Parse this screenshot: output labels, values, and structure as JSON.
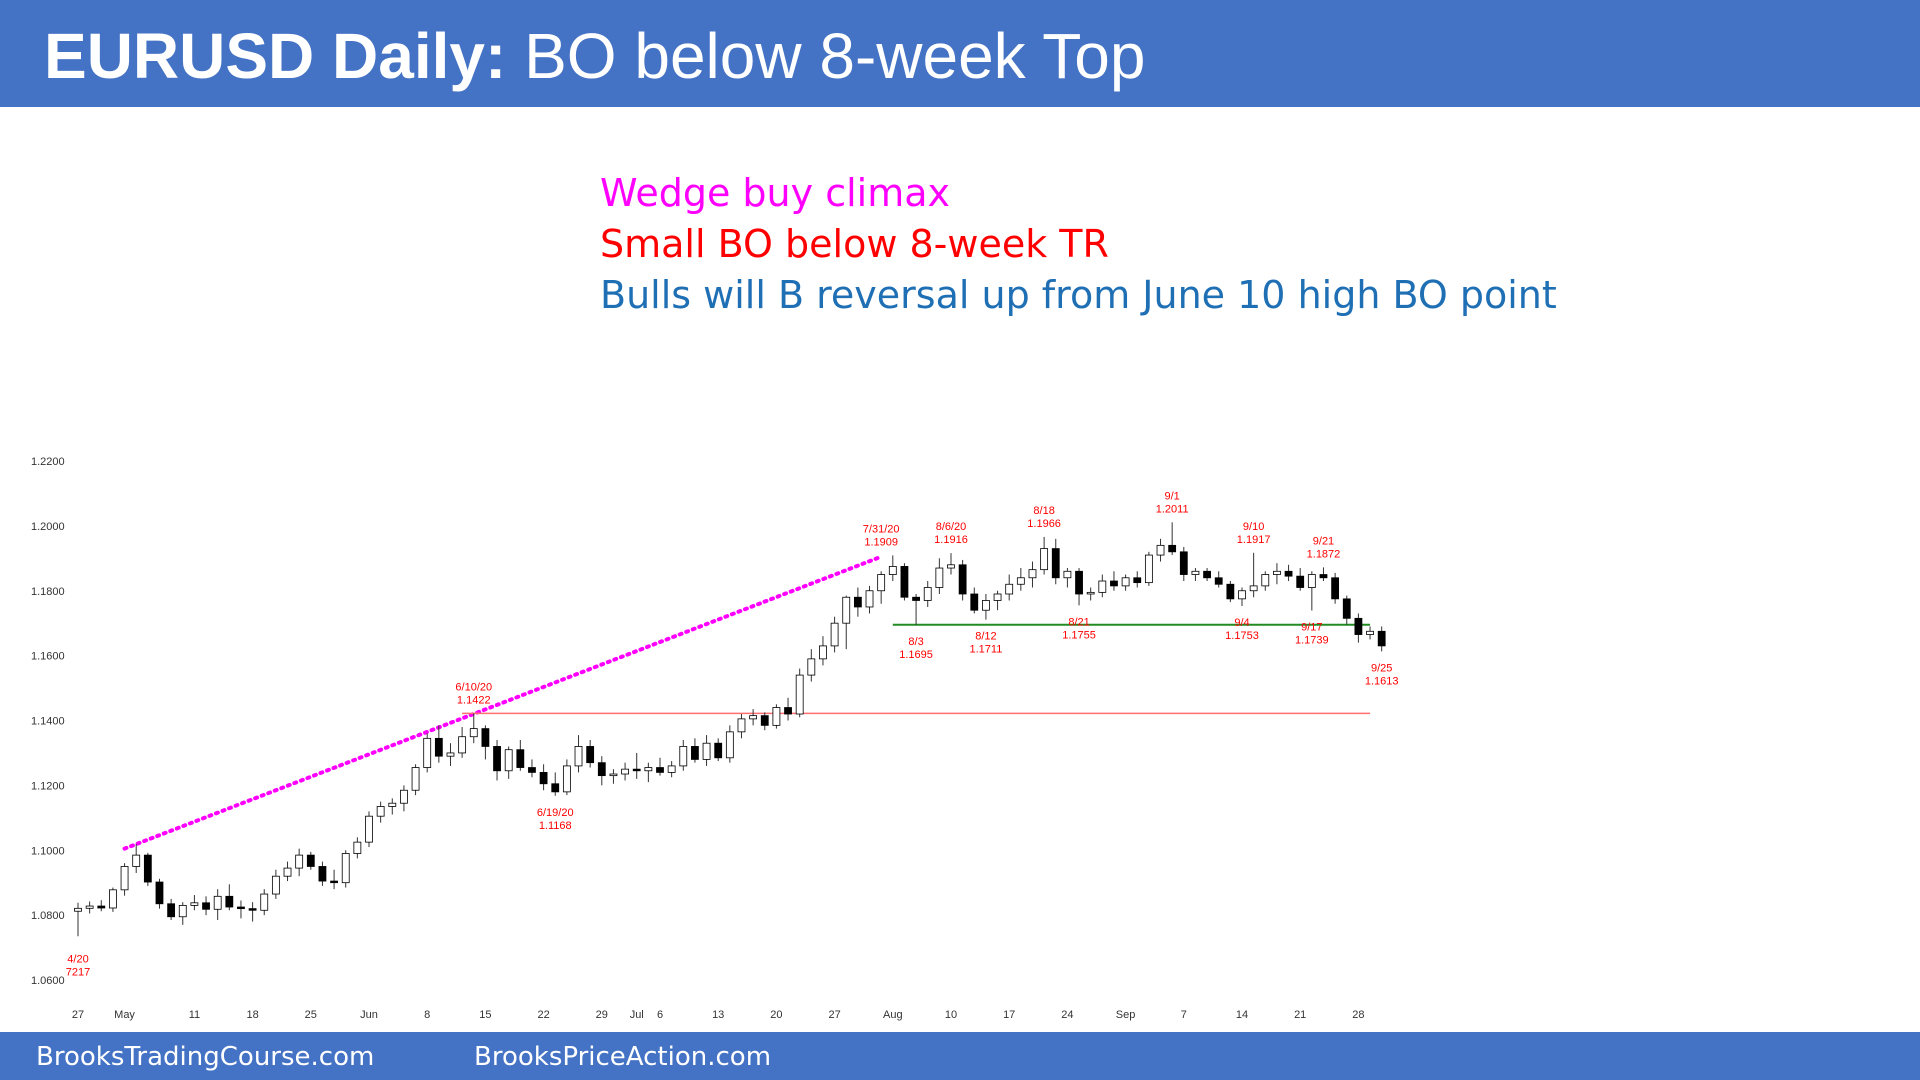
{
  "header": {
    "title_bold": "EURUSD Daily:",
    "title_rest": "BO below 8-week Top"
  },
  "notes": [
    {
      "text": "Wedge buy climax",
      "color": "#ff00ff"
    },
    {
      "text": "Small BO below 8-week TR",
      "color": "#ff0000"
    },
    {
      "text": "Bulls will B reversal up from June 10 high BO point",
      "color": "#1f6fb5"
    }
  ],
  "footer": {
    "left": "BrooksTradingCourse.com",
    "right": "BrooksPriceAction.com"
  },
  "chart_data": {
    "type": "candlestick",
    "ylim": [
      1.06,
      1.22
    ],
    "y_ticks": [
      "1.0600",
      "1.0800",
      "1.1000",
      "1.1200",
      "1.1400",
      "1.1600",
      "1.1800",
      "1.2000",
      "1.2200"
    ],
    "x_ticks": [
      {
        "label": "27",
        "i": 0
      },
      {
        "label": "May",
        "i": 4
      },
      {
        "label": "11",
        "i": 10
      },
      {
        "label": "18",
        "i": 15
      },
      {
        "label": "25",
        "i": 20
      },
      {
        "label": "Jun",
        "i": 25
      },
      {
        "label": "8",
        "i": 30
      },
      {
        "label": "15",
        "i": 35
      },
      {
        "label": "22",
        "i": 40
      },
      {
        "label": "29",
        "i": 45
      },
      {
        "label": "Jul",
        "i": 48
      },
      {
        "label": "6",
        "i": 50
      },
      {
        "label": "13",
        "i": 55
      },
      {
        "label": "20",
        "i": 60
      },
      {
        "label": "27",
        "i": 65
      },
      {
        "label": "Aug",
        "i": 70
      },
      {
        "label": "10",
        "i": 75
      },
      {
        "label": "17",
        "i": 80
      },
      {
        "label": "24",
        "i": 85
      },
      {
        "label": "Sep",
        "i": 90
      },
      {
        "label": "7",
        "i": 95
      },
      {
        "label": "14",
        "i": 100
      },
      {
        "label": "21",
        "i": 105
      },
      {
        "label": "28",
        "i": 110
      }
    ],
    "candles": [
      [
        1.0812,
        1.0838,
        1.0735,
        1.0821
      ],
      [
        1.0821,
        1.0842,
        1.0805,
        1.0828
      ],
      [
        1.0828,
        1.0846,
        1.0812,
        1.0822
      ],
      [
        1.0822,
        1.0885,
        1.081,
        1.0878
      ],
      [
        1.0878,
        1.096,
        1.086,
        1.095
      ],
      [
        1.095,
        1.1019,
        1.093,
        1.0985
      ],
      [
        1.0985,
        1.0992,
        1.089,
        1.0902
      ],
      [
        1.0902,
        1.0912,
        1.082,
        1.0835
      ],
      [
        1.0835,
        1.085,
        1.0785,
        1.0795
      ],
      [
        1.0795,
        1.084,
        1.077,
        1.083
      ],
      [
        1.083,
        1.0862,
        1.0815,
        1.0838
      ],
      [
        1.0838,
        1.0858,
        1.08,
        1.0818
      ],
      [
        1.0818,
        1.088,
        1.0785,
        1.0858
      ],
      [
        1.0858,
        1.0895,
        1.0815,
        1.0825
      ],
      [
        1.0825,
        1.0845,
        1.079,
        1.082
      ],
      [
        1.082,
        1.084,
        1.078,
        1.0815
      ],
      [
        1.0815,
        1.088,
        1.08,
        1.0865
      ],
      [
        1.0865,
        1.094,
        1.085,
        1.092
      ],
      [
        1.092,
        1.0965,
        1.0905,
        1.0945
      ],
      [
        1.0945,
        1.1005,
        1.092,
        1.0985
      ],
      [
        1.0985,
        1.0995,
        1.094,
        1.095
      ],
      [
        1.095,
        1.0965,
        1.089,
        1.0905
      ],
      [
        1.0905,
        1.094,
        1.088,
        1.09
      ],
      [
        1.09,
        1.1,
        1.0885,
        1.099
      ],
      [
        1.099,
        1.104,
        1.0975,
        1.1025
      ],
      [
        1.1025,
        1.112,
        1.101,
        1.1105
      ],
      [
        1.1105,
        1.115,
        1.1085,
        1.1135
      ],
      [
        1.1135,
        1.116,
        1.111,
        1.1145
      ],
      [
        1.1145,
        1.12,
        1.112,
        1.1185
      ],
      [
        1.1185,
        1.1265,
        1.117,
        1.1255
      ],
      [
        1.1255,
        1.136,
        1.124,
        1.1345
      ],
      [
        1.1345,
        1.1385,
        1.127,
        1.129
      ],
      [
        1.129,
        1.133,
        1.126,
        1.13
      ],
      [
        1.13,
        1.138,
        1.1285,
        1.135
      ],
      [
        1.135,
        1.1422,
        1.133,
        1.1375
      ],
      [
        1.1375,
        1.1385,
        1.128,
        1.132
      ],
      [
        1.132,
        1.134,
        1.1215,
        1.1245
      ],
      [
        1.1245,
        1.132,
        1.122,
        1.131
      ],
      [
        1.131,
        1.134,
        1.1245,
        1.1255
      ],
      [
        1.1255,
        1.128,
        1.1225,
        1.124
      ],
      [
        1.124,
        1.1265,
        1.1185,
        1.1205
      ],
      [
        1.1205,
        1.124,
        1.1168,
        1.118
      ],
      [
        1.118,
        1.128,
        1.117,
        1.126
      ],
      [
        1.126,
        1.1355,
        1.124,
        1.132
      ],
      [
        1.132,
        1.134,
        1.1255,
        1.127
      ],
      [
        1.127,
        1.129,
        1.12,
        1.123
      ],
      [
        1.123,
        1.125,
        1.1205,
        1.1235
      ],
      [
        1.1235,
        1.127,
        1.1215,
        1.125
      ],
      [
        1.125,
        1.13,
        1.122,
        1.1245
      ],
      [
        1.1245,
        1.127,
        1.121,
        1.1255
      ],
      [
        1.1255,
        1.1285,
        1.123,
        1.124
      ],
      [
        1.124,
        1.1275,
        1.1225,
        1.126
      ],
      [
        1.126,
        1.134,
        1.1245,
        1.132
      ],
      [
        1.132,
        1.1345,
        1.127,
        1.128
      ],
      [
        1.128,
        1.1355,
        1.126,
        1.133
      ],
      [
        1.133,
        1.1345,
        1.1275,
        1.1285
      ],
      [
        1.1285,
        1.1385,
        1.127,
        1.1365
      ],
      [
        1.1365,
        1.142,
        1.1345,
        1.1405
      ],
      [
        1.1405,
        1.1435,
        1.1385,
        1.1415
      ],
      [
        1.1415,
        1.1425,
        1.137,
        1.1385
      ],
      [
        1.1385,
        1.145,
        1.1375,
        1.144
      ],
      [
        1.144,
        1.147,
        1.14,
        1.142
      ],
      [
        1.142,
        1.156,
        1.141,
        1.154
      ],
      [
        1.154,
        1.162,
        1.152,
        1.159
      ],
      [
        1.159,
        1.166,
        1.157,
        1.163
      ],
      [
        1.163,
        1.172,
        1.161,
        1.17
      ],
      [
        1.17,
        1.1785,
        1.162,
        1.178
      ],
      [
        1.178,
        1.181,
        1.172,
        1.175
      ],
      [
        1.175,
        1.1815,
        1.173,
        1.18
      ],
      [
        1.18,
        1.186,
        1.176,
        1.185
      ],
      [
        1.185,
        1.1909,
        1.183,
        1.1875
      ],
      [
        1.1875,
        1.1885,
        1.177,
        1.178
      ],
      [
        1.178,
        1.179,
        1.1695,
        1.177
      ],
      [
        1.177,
        1.183,
        1.175,
        1.181
      ],
      [
        1.181,
        1.19,
        1.179,
        1.187
      ],
      [
        1.187,
        1.1916,
        1.185,
        1.188
      ],
      [
        1.188,
        1.1895,
        1.177,
        1.179
      ],
      [
        1.179,
        1.181,
        1.173,
        1.174
      ],
      [
        1.174,
        1.179,
        1.1711,
        1.177
      ],
      [
        1.177,
        1.18,
        1.174,
        1.179
      ],
      [
        1.179,
        1.185,
        1.177,
        1.182
      ],
      [
        1.182,
        1.187,
        1.18,
        1.184
      ],
      [
        1.184,
        1.189,
        1.181,
        1.1865
      ],
      [
        1.1865,
        1.1966,
        1.185,
        1.193
      ],
      [
        1.193,
        1.196,
        1.182,
        1.184
      ],
      [
        1.184,
        1.187,
        1.181,
        1.186
      ],
      [
        1.186,
        1.187,
        1.1755,
        1.179
      ],
      [
        1.179,
        1.181,
        1.177,
        1.1795
      ],
      [
        1.1795,
        1.185,
        1.178,
        1.183
      ],
      [
        1.183,
        1.186,
        1.18,
        1.1815
      ],
      [
        1.1815,
        1.185,
        1.18,
        1.184
      ],
      [
        1.184,
        1.186,
        1.181,
        1.1825
      ],
      [
        1.1825,
        1.192,
        1.1815,
        1.191
      ],
      [
        1.191,
        1.196,
        1.189,
        1.194
      ],
      [
        1.194,
        1.2011,
        1.191,
        1.192
      ],
      [
        1.192,
        1.1935,
        1.183,
        1.185
      ],
      [
        1.185,
        1.187,
        1.183,
        1.186
      ],
      [
        1.186,
        1.187,
        1.183,
        1.184
      ],
      [
        1.184,
        1.186,
        1.181,
        1.182
      ],
      [
        1.182,
        1.183,
        1.1765,
        1.1775
      ],
      [
        1.1775,
        1.181,
        1.1753,
        1.18
      ],
      [
        1.18,
        1.1917,
        1.178,
        1.1815
      ],
      [
        1.1815,
        1.186,
        1.18,
        1.185
      ],
      [
        1.185,
        1.1885,
        1.182,
        1.186
      ],
      [
        1.186,
        1.188,
        1.183,
        1.1845
      ],
      [
        1.1845,
        1.187,
        1.18,
        1.181
      ],
      [
        1.181,
        1.186,
        1.1739,
        1.185
      ],
      [
        1.185,
        1.1872,
        1.183,
        1.184
      ],
      [
        1.184,
        1.1855,
        1.176,
        1.1775
      ],
      [
        1.1775,
        1.1785,
        1.1695,
        1.1715
      ],
      [
        1.1715,
        1.173,
        1.164,
        1.1665
      ],
      [
        1.1665,
        1.169,
        1.165,
        1.1675
      ],
      [
        1.1675,
        1.169,
        1.1613,
        1.163
      ]
    ],
    "lines": [
      {
        "name": "wedge-trendline",
        "style": "dotted",
        "color": "#ff00ff",
        "from": {
          "i": 4,
          "y": 1.1005
        },
        "to": {
          "i": 69,
          "y": 1.1905
        }
      },
      {
        "name": "bo-point-line",
        "style": "solid",
        "color": "#ff6f6f",
        "from": {
          "i": 33,
          "y": 1.1422
        },
        "to": {
          "i": 111,
          "y": 1.1422
        }
      },
      {
        "name": "tr-bottom-line",
        "style": "solid",
        "color": "#228b22",
        "from": {
          "i": 70,
          "y": 1.1695
        },
        "to": {
          "i": 111,
          "y": 1.1695
        }
      }
    ],
    "annotations": [
      {
        "lines": [
          "4/20",
          "7217"
        ],
        "i": 0,
        "y": 1.0715,
        "pos": "below"
      },
      {
        "lines": [
          "6/10/20",
          "1.1422"
        ],
        "i": 34,
        "y": 1.1422,
        "pos": "above"
      },
      {
        "lines": [
          "6/19/20",
          "1.1168"
        ],
        "i": 41,
        "y": 1.1168,
        "pos": "below"
      },
      {
        "lines": [
          "7/31/20",
          "1.1909"
        ],
        "i": 69,
        "y": 1.1909,
        "pos": "above"
      },
      {
        "lines": [
          "8/6/20",
          "1.1916"
        ],
        "i": 75,
        "y": 1.1916,
        "pos": "above"
      },
      {
        "lines": [
          "8/18",
          "1.1966"
        ],
        "i": 83,
        "y": 1.1966,
        "pos": "above"
      },
      {
        "lines": [
          "9/1",
          "1.2011"
        ],
        "i": 94,
        "y": 1.2011,
        "pos": "above"
      },
      {
        "lines": [
          "9/10",
          "1.1917"
        ],
        "i": 101,
        "y": 1.1917,
        "pos": "above"
      },
      {
        "lines": [
          "9/21",
          "1.1872"
        ],
        "i": 107,
        "y": 1.1872,
        "pos": "above"
      },
      {
        "lines": [
          "8/3",
          "1.1695"
        ],
        "i": 72,
        "y": 1.1695,
        "pos": "below"
      },
      {
        "lines": [
          "8/12",
          "1.1711"
        ],
        "i": 78,
        "y": 1.1711,
        "pos": "below"
      },
      {
        "lines": [
          "8/21",
          "1.1755"
        ],
        "i": 86,
        "y": 1.1755,
        "pos": "below"
      },
      {
        "lines": [
          "9/4",
          "1.1753"
        ],
        "i": 100,
        "y": 1.1753,
        "pos": "below"
      },
      {
        "lines": [
          "9/17",
          "1.1739"
        ],
        "i": 106,
        "y": 1.1739,
        "pos": "below"
      },
      {
        "lines": [
          "9/25",
          "1.1613"
        ],
        "i": 112,
        "y": 1.1613,
        "pos": "below"
      }
    ],
    "colors": {
      "bull": "#ffffff",
      "bear": "#000000",
      "wick": "#333333",
      "annotation": "#ff0000",
      "axis_text": "#333333"
    }
  }
}
